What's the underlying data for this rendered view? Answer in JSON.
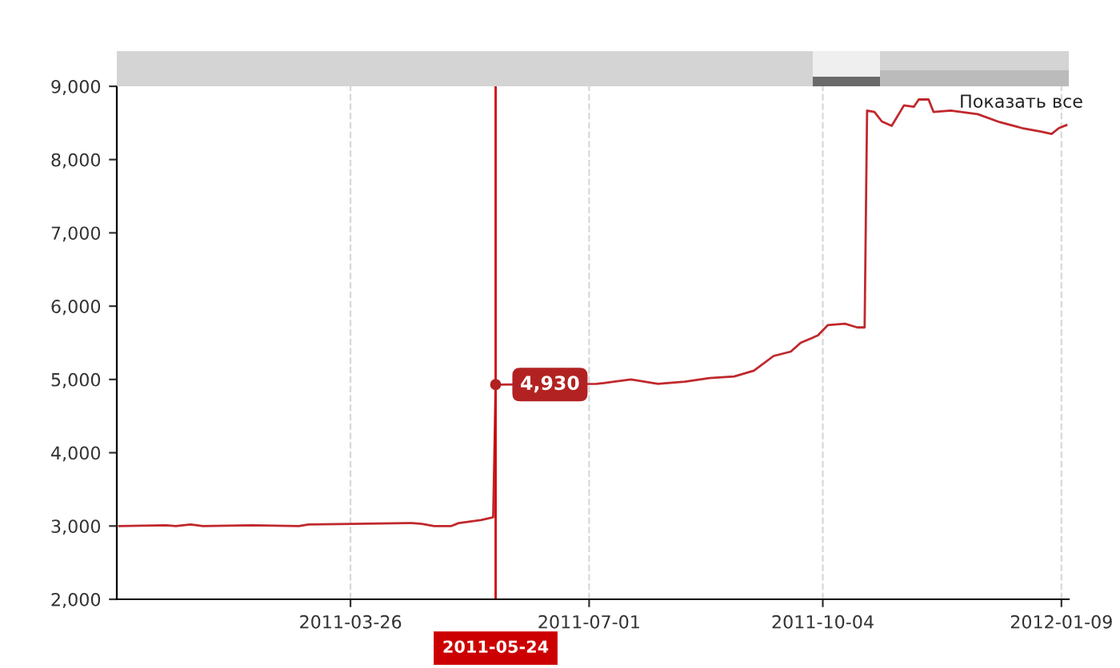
{
  "chart_data": {
    "type": "line",
    "x": [
      "2010-12-22",
      "2011-01-10",
      "2011-01-14",
      "2011-01-20",
      "2011-01-25",
      "2011-02-14",
      "2011-03-05",
      "2011-03-09",
      "2011-03-27",
      "2011-04-20",
      "2011-04-24",
      "2011-04-29",
      "2011-05-06",
      "2011-05-09",
      "2011-05-18",
      "2011-05-23",
      "2011-05-24",
      "2011-07-04",
      "2011-07-07",
      "2011-07-18",
      "2011-07-29",
      "2011-08-09",
      "2011-08-19",
      "2011-08-29",
      "2011-09-06",
      "2011-09-14",
      "2011-09-21",
      "2011-09-25",
      "2011-10-02",
      "2011-10-06",
      "2011-10-13",
      "2011-10-18",
      "2011-10-21",
      "2011-10-22",
      "2011-10-25",
      "2011-10-28",
      "2011-11-01",
      "2011-11-06",
      "2011-11-10",
      "2011-11-12",
      "2011-11-16",
      "2011-11-18",
      "2011-11-25",
      "2011-12-06",
      "2011-12-15",
      "2011-12-24",
      "2012-01-01",
      "2012-01-05",
      "2012-01-08",
      "2012-01-11"
    ],
    "series": [
      {
        "color": "#c0282d",
        "values": [
          3000,
          3010,
          3000,
          3020,
          3000,
          3010,
          3000,
          3020,
          3030,
          3040,
          3030,
          3000,
          3000,
          3040,
          3080,
          3120,
          4930,
          4940,
          4950,
          5000,
          4940,
          4970,
          5020,
          5040,
          5120,
          5320,
          5380,
          5500,
          5600,
          5740,
          5760,
          5710,
          5710,
          8670,
          8650,
          8520,
          8460,
          8740,
          8720,
          8820,
          8820,
          8650,
          8670,
          8620,
          8510,
          8430,
          8380,
          8350,
          8430,
          8470
        ]
      }
    ],
    "xlim": [
      "2010-12-21",
      "2012-01-12"
    ],
    "xticks": [
      "2011-03-26",
      "2011-07-01",
      "2011-10-04",
      "2012-01-09"
    ],
    "ylim": [
      2000,
      9000
    ],
    "yticks": [
      {
        "value": 2000,
        "label": "2,000"
      },
      {
        "value": 3000,
        "label": "3,000"
      },
      {
        "value": 4000,
        "label": "4,000"
      },
      {
        "value": 5000,
        "label": "5,000"
      },
      {
        "value": 6000,
        "label": "6,000"
      },
      {
        "value": 7000,
        "label": "7,000"
      },
      {
        "value": 8000,
        "label": "8,000"
      },
      {
        "value": 9000,
        "label": "9,000"
      }
    ],
    "grid": "x",
    "line_style": "solid",
    "marker": "none",
    "ref_lines": [
      {
        "axis": "x",
        "value": "2011-05-24",
        "label": "2011-05-24",
        "color": "#cc0000",
        "line_style": "solid"
      }
    ],
    "annotations": [
      {
        "text": "4,930",
        "x": "2011-05-24",
        "y": 4930
      },
      "Показать все"
    ]
  }
}
